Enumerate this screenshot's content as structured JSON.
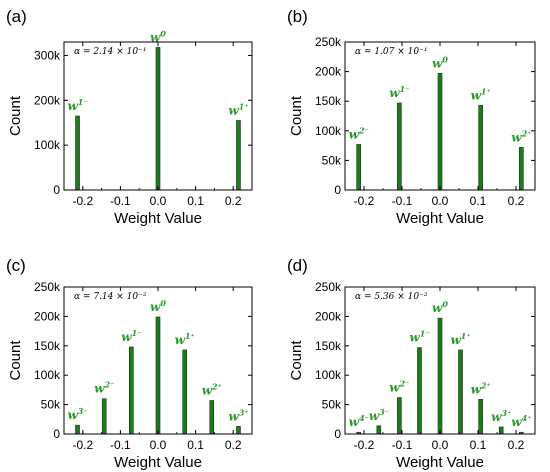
{
  "figure": {
    "bar_color": "#1f7a1f",
    "bar_stroke": "#0b3d0b",
    "label_color": "#2a9a2a"
  },
  "chart_data": [
    {
      "type": "bar",
      "panel_label": "(a)",
      "annotation": "α = 2.14 × 10⁻¹",
      "xlabel": "Weight Value",
      "ylabel": "Count",
      "xlim": [
        -0.25,
        0.25
      ],
      "ylim": [
        0,
        330000
      ],
      "x_ticks": [
        -0.2,
        -0.1,
        0.0,
        0.1,
        0.2
      ],
      "x_tick_labels": [
        "-0.2",
        "-0.1",
        "0.0",
        "0.1",
        "0.2"
      ],
      "y_ticks": [
        0,
        100000,
        200000,
        300000
      ],
      "y_tick_labels": [
        "0",
        "100k",
        "200k",
        "300k"
      ],
      "x": [
        -0.214,
        0.0,
        0.214
      ],
      "values": [
        165000,
        318000,
        155000
      ],
      "bar_labels": [
        {
          "base": "w",
          "sup": "1⁻"
        },
        {
          "base": "w",
          "sup": "0"
        },
        {
          "base": "w",
          "sup": "1⁺"
        }
      ]
    },
    {
      "type": "bar",
      "panel_label": "(b)",
      "annotation": "α = 1.07 × 10⁻¹",
      "xlabel": "Weight Value",
      "ylabel": "Count",
      "xlim": [
        -0.25,
        0.25
      ],
      "ylim": [
        0,
        250000
      ],
      "x_ticks": [
        -0.2,
        -0.1,
        0.0,
        0.1,
        0.2
      ],
      "x_tick_labels": [
        "-0.2",
        "-0.1",
        "0.0",
        "0.1",
        "0.2"
      ],
      "y_ticks": [
        0,
        50000,
        100000,
        150000,
        200000,
        250000
      ],
      "y_tick_labels": [
        "0",
        "50k",
        "100k",
        "150k",
        "200k",
        "250k"
      ],
      "x": [
        -0.214,
        -0.107,
        0.0,
        0.107,
        0.214
      ],
      "values": [
        77000,
        147000,
        197000,
        143000,
        72000
      ],
      "bar_labels": [
        {
          "base": "w",
          "sup": "2⁻"
        },
        {
          "base": "w",
          "sup": "1⁻"
        },
        {
          "base": "w",
          "sup": "0"
        },
        {
          "base": "w",
          "sup": "1⁺"
        },
        {
          "base": "w",
          "sup": "2⁺"
        }
      ]
    },
    {
      "type": "bar",
      "panel_label": "(c)",
      "annotation": "α = 7.14 × 10⁻²",
      "xlabel": "Weight Value",
      "ylabel": "Count",
      "xlim": [
        -0.25,
        0.25
      ],
      "ylim": [
        0,
        250000
      ],
      "x_ticks": [
        -0.2,
        -0.1,
        0.0,
        0.1,
        0.2
      ],
      "x_tick_labels": [
        "-0.2",
        "-0.1",
        "0.0",
        "0.1",
        "0.2"
      ],
      "y_ticks": [
        0,
        50000,
        100000,
        150000,
        200000,
        250000
      ],
      "y_tick_labels": [
        "0",
        "50k",
        "100k",
        "150k",
        "200k",
        "250k"
      ],
      "x": [
        -0.214,
        -0.143,
        -0.071,
        0.0,
        0.071,
        0.143,
        0.214
      ],
      "values": [
        15000,
        60000,
        148000,
        199000,
        143000,
        57000,
        13000
      ],
      "bar_labels": [
        {
          "base": "w",
          "sup": "3⁻"
        },
        {
          "base": "w",
          "sup": "2⁻"
        },
        {
          "base": "w",
          "sup": "1⁻"
        },
        {
          "base": "w",
          "sup": "0"
        },
        {
          "base": "w",
          "sup": "1⁺"
        },
        {
          "base": "w",
          "sup": "2⁺"
        },
        {
          "base": "w",
          "sup": "3⁺"
        }
      ]
    },
    {
      "type": "bar",
      "panel_label": "(d)",
      "annotation": "α = 5.36 × 10⁻²",
      "xlabel": "Weight Value",
      "ylabel": "Count",
      "xlim": [
        -0.25,
        0.25
      ],
      "ylim": [
        0,
        250000
      ],
      "x_ticks": [
        -0.2,
        -0.1,
        0.0,
        0.1,
        0.2
      ],
      "x_tick_labels": [
        "-0.2",
        "-0.1",
        "0.0",
        "0.1",
        "0.2"
      ],
      "y_ticks": [
        0,
        50000,
        100000,
        150000,
        200000,
        250000
      ],
      "y_tick_labels": [
        "0",
        "50k",
        "100k",
        "150k",
        "200k",
        "250k"
      ],
      "x": [
        -0.214,
        -0.161,
        -0.107,
        -0.054,
        0.0,
        0.054,
        0.107,
        0.161,
        0.214
      ],
      "values": [
        3000,
        14000,
        62000,
        147000,
        197000,
        143000,
        59000,
        12000,
        3000
      ],
      "bar_labels": [
        {
          "base": "w",
          "sup": "4⁻"
        },
        {
          "base": "w",
          "sup": "3⁻"
        },
        {
          "base": "w",
          "sup": "2⁻"
        },
        {
          "base": "w",
          "sup": "1⁻"
        },
        {
          "base": "w",
          "sup": "0"
        },
        {
          "base": "w",
          "sup": "1⁺"
        },
        {
          "base": "w",
          "sup": "2⁺"
        },
        {
          "base": "w",
          "sup": "3⁺"
        },
        {
          "base": "w",
          "sup": "4⁺"
        }
      ]
    }
  ]
}
